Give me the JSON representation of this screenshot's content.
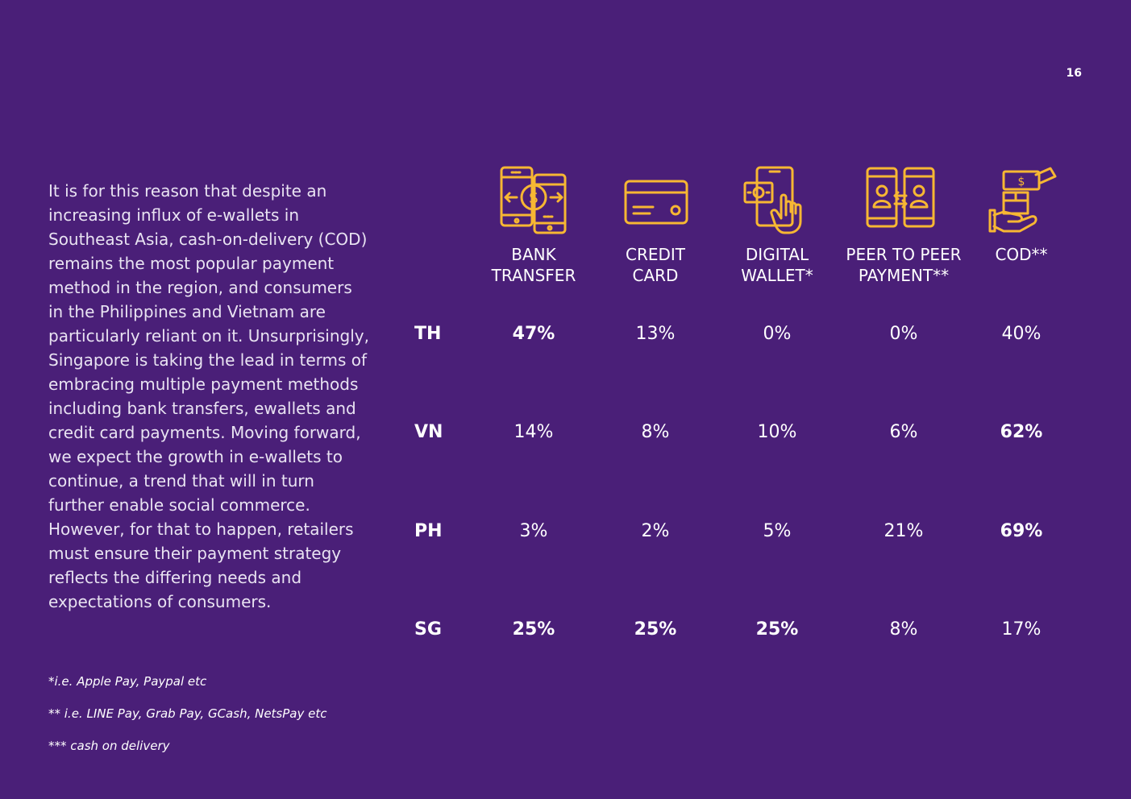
{
  "page": {
    "number": "16"
  },
  "intro": {
    "text": "It is for this reason that despite an increasing influx of e-wallets in Southeast Asia, cash-on-delivery (COD) remains the most popular payment method in the region, and consumers in the Philippines and Vietnam are particularly reliant on it. Unsurprisingly, Singapore is taking the lead in terms of embracing multiple payment methods including bank transfers, ewallets and credit card payments. Moving forward, we expect the growth in e-wallets to continue, a trend that will in turn further enable social commerce. However, for that to happen, retailers must ensure their payment strategy reflects the differing needs and expectations of consumers."
  },
  "footnotes": [
    "*i.e. Apple Pay, Paypal etc",
    "** i.e. LINE Pay, Grab Pay, GCash, NetsPay etc",
    "*** cash on delivery"
  ],
  "colors": {
    "background": "#4a1f78",
    "icon": "#f7b733",
    "text": "#ffffff"
  },
  "table": {
    "columns": [
      {
        "icon": "bank-transfer-icon",
        "line1": "BANK",
        "line2": "TRANSFER"
      },
      {
        "icon": "credit-card-icon",
        "line1": "CREDIT",
        "line2": "CARD"
      },
      {
        "icon": "digital-wallet-icon",
        "line1": "DIGITAL",
        "line2": "WALLET*"
      },
      {
        "icon": "peer-to-peer-icon",
        "line1": "PEER TO PEER",
        "line2": "PAYMENT**"
      },
      {
        "icon": "cod-icon",
        "line1": "COD**",
        "line2": ""
      }
    ],
    "rows": [
      {
        "label": "TH",
        "cells": [
          {
            "value": "47%",
            "highlight": true
          },
          {
            "value": "13%",
            "highlight": false
          },
          {
            "value": "0%",
            "highlight": false
          },
          {
            "value": "0%",
            "highlight": false
          },
          {
            "value": "40%",
            "highlight": false
          }
        ]
      },
      {
        "label": "VN",
        "cells": [
          {
            "value": "14%",
            "highlight": false
          },
          {
            "value": "8%",
            "highlight": false
          },
          {
            "value": "10%",
            "highlight": false
          },
          {
            "value": "6%",
            "highlight": false
          },
          {
            "value": "62%",
            "highlight": true
          }
        ]
      },
      {
        "label": "PH",
        "cells": [
          {
            "value": "3%",
            "highlight": false
          },
          {
            "value": "2%",
            "highlight": false
          },
          {
            "value": "5%",
            "highlight": false
          },
          {
            "value": "21%",
            "highlight": false
          },
          {
            "value": "69%",
            "highlight": true
          }
        ]
      },
      {
        "label": "SG",
        "cells": [
          {
            "value": "25%",
            "highlight": true
          },
          {
            "value": "25%",
            "highlight": true
          },
          {
            "value": "25%",
            "highlight": true
          },
          {
            "value": "8%",
            "highlight": false
          },
          {
            "value": "17%",
            "highlight": false
          }
        ]
      }
    ]
  }
}
